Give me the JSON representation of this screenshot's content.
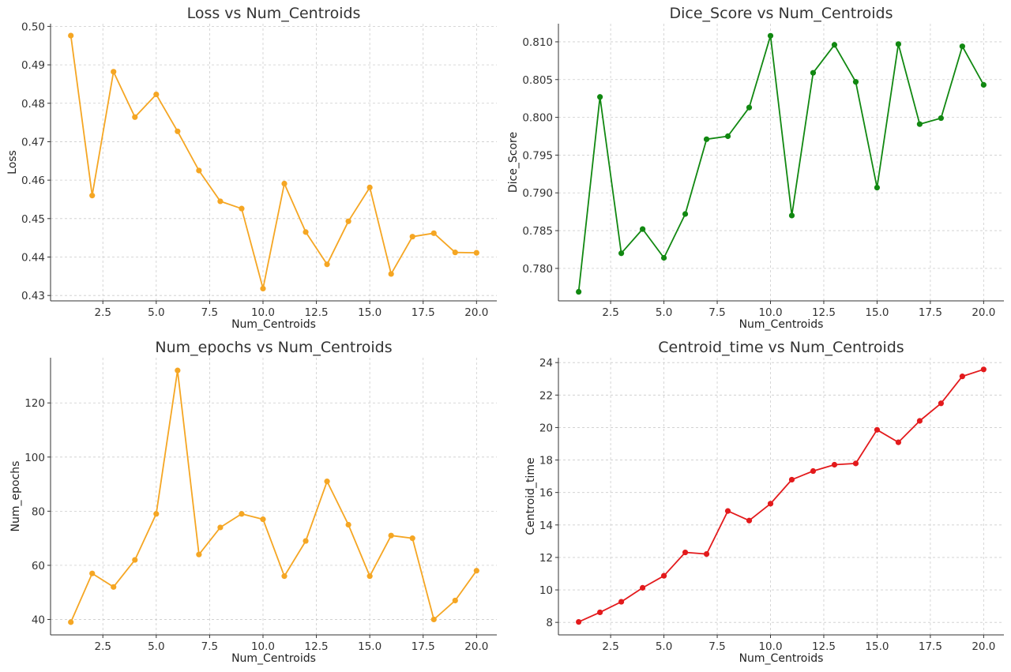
{
  "chart_data": [
    {
      "type": "line",
      "title": "Loss vs Num_Centroids",
      "xlabel": "Num_Centroids",
      "ylabel": "Loss",
      "color": "#f5a623",
      "grid": true,
      "xlim": [
        0.05,
        20.95
      ],
      "ylim": [
        0.4286,
        0.5007
      ],
      "x_ticks": [
        2.5,
        5.0,
        7.5,
        10.0,
        12.5,
        15.0,
        17.5,
        20.0
      ],
      "x_tick_labels": [
        "2.5",
        "5.0",
        "7.5",
        "10.0",
        "12.5",
        "15.0",
        "17.5",
        "20.0"
      ],
      "y_ticks": [
        0.43,
        0.44,
        0.45,
        0.46,
        0.47,
        0.48,
        0.49,
        0.5
      ],
      "y_tick_labels": [
        "0.43",
        "0.44",
        "0.45",
        "0.46",
        "0.47",
        "0.48",
        "0.49",
        "0.50"
      ],
      "x": [
        1,
        2,
        3,
        4,
        5,
        6,
        7,
        8,
        9,
        10,
        11,
        12,
        13,
        14,
        15,
        16,
        17,
        18,
        19,
        20
      ],
      "values": [
        0.4976,
        0.456,
        0.4882,
        0.4764,
        0.4823,
        0.4727,
        0.4625,
        0.4545,
        0.4526,
        0.4318,
        0.4591,
        0.4465,
        0.4381,
        0.4493,
        0.4581,
        0.4356,
        0.4453,
        0.4462,
        0.4412,
        0.4411
      ]
    },
    {
      "type": "line",
      "title": "Dice_Score vs Num_Centroids",
      "xlabel": "Num_Centroids",
      "ylabel": "Dice_Score",
      "color": "#118811",
      "grid": true,
      "xlim": [
        0.05,
        20.95
      ],
      "ylim": [
        0.7757,
        0.8124
      ],
      "x_ticks": [
        2.5,
        5.0,
        7.5,
        10.0,
        12.5,
        15.0,
        17.5,
        20.0
      ],
      "x_tick_labels": [
        "2.5",
        "5.0",
        "7.5",
        "10.0",
        "12.5",
        "15.0",
        "17.5",
        "20.0"
      ],
      "y_ticks": [
        0.78,
        0.785,
        0.79,
        0.795,
        0.8,
        0.805,
        0.81
      ],
      "y_tick_labels": [
        "0.780",
        "0.785",
        "0.790",
        "0.795",
        "0.800",
        "0.805",
        "0.810"
      ],
      "x": [
        1,
        2,
        3,
        4,
        5,
        6,
        7,
        8,
        9,
        10,
        11,
        12,
        13,
        14,
        15,
        16,
        17,
        18,
        19,
        20
      ],
      "values": [
        0.7769,
        0.8027,
        0.782,
        0.7852,
        0.7814,
        0.7872,
        0.7971,
        0.7975,
        0.8013,
        0.8108,
        0.787,
        0.8059,
        0.8096,
        0.8047,
        0.7907,
        0.8097,
        0.7991,
        0.7999,
        0.8094,
        0.8043
      ]
    },
    {
      "type": "line",
      "title": "Num_epochs vs Num_Centroids",
      "xlabel": "Num_Centroids",
      "ylabel": "Num_epochs",
      "color": "#f5a623",
      "grid": true,
      "xlim": [
        0.05,
        20.95
      ],
      "ylim": [
        34.3,
        136.7
      ],
      "x_ticks": [
        2.5,
        5.0,
        7.5,
        10.0,
        12.5,
        15.0,
        17.5,
        20.0
      ],
      "x_tick_labels": [
        "2.5",
        "5.0",
        "7.5",
        "10.0",
        "12.5",
        "15.0",
        "17.5",
        "20.0"
      ],
      "y_ticks": [
        40,
        60,
        80,
        100,
        120
      ],
      "y_tick_labels": [
        "40",
        "60",
        "80",
        "100",
        "120"
      ],
      "x": [
        1,
        2,
        3,
        4,
        5,
        6,
        7,
        8,
        9,
        10,
        11,
        12,
        13,
        14,
        15,
        16,
        17,
        18,
        19,
        20
      ],
      "values": [
        39,
        57,
        52,
        62,
        79,
        132,
        64,
        74,
        79,
        77,
        56,
        69,
        91,
        75,
        56,
        71,
        70,
        40,
        47,
        58
      ]
    },
    {
      "type": "line",
      "title": "Centroid_time vs Num_Centroids",
      "xlabel": "Num_Centroids",
      "ylabel": "Centroid_time",
      "color": "#e31a1c",
      "grid": true,
      "xlim": [
        0.05,
        20.95
      ],
      "ylim": [
        7.23,
        24.3
      ],
      "x_ticks": [
        2.5,
        5.0,
        7.5,
        10.0,
        12.5,
        15.0,
        17.5,
        20.0
      ],
      "x_tick_labels": [
        "2.5",
        "5.0",
        "7.5",
        "10.0",
        "12.5",
        "15.0",
        "17.5",
        "20.0"
      ],
      "y_ticks": [
        8,
        10,
        12,
        14,
        16,
        18,
        20,
        22,
        24
      ],
      "y_tick_labels": [
        "8",
        "10",
        "12",
        "14",
        "16",
        "18",
        "20",
        "22",
        "24"
      ],
      "x": [
        1,
        2,
        3,
        4,
        5,
        6,
        7,
        8,
        9,
        10,
        11,
        12,
        13,
        14,
        15,
        16,
        17,
        18,
        19,
        20
      ],
      "values": [
        8.03,
        8.62,
        9.27,
        10.13,
        10.87,
        12.31,
        12.21,
        14.86,
        14.27,
        15.31,
        16.79,
        17.32,
        17.71,
        17.79,
        19.86,
        19.09,
        20.41,
        21.49,
        23.15,
        23.58
      ]
    }
  ]
}
